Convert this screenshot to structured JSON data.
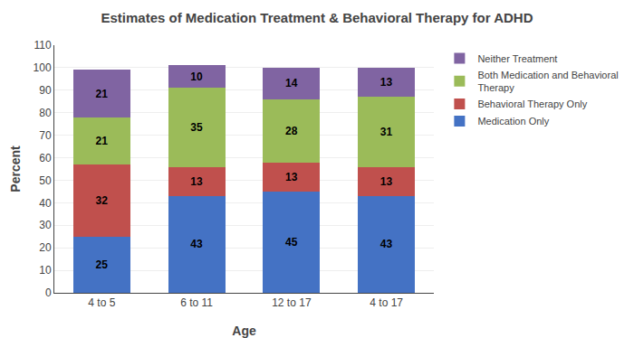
{
  "chart_data": {
    "type": "bar",
    "title": "Estimates of Medication Treatment & Behavioral Therapy for ADHD",
    "categories": [
      "4 to 5",
      "6 to 11",
      "12 to 17",
      "4 to 17"
    ],
    "xlabel": "Age",
    "ylabel": "Percent",
    "ylim": [
      0,
      110
    ],
    "yticks": [
      0,
      10,
      20,
      30,
      40,
      50,
      60,
      70,
      80,
      90,
      100,
      110
    ],
    "stacked": true,
    "data_labels": true,
    "grid": true,
    "legend": "right",
    "series": [
      {
        "name": "Medication Only",
        "color": "#4472C4",
        "values": [
          25,
          43,
          45,
          43
        ]
      },
      {
        "name": "Behavioral Therapy Only",
        "color": "#C0504D",
        "values": [
          32,
          13,
          13,
          13
        ]
      },
      {
        "name": "Both Medication and Behavioral\nTherapy",
        "color": "#9BBB59",
        "values": [
          21,
          35,
          28,
          31
        ]
      },
      {
        "name": "Neither Treatment",
        "color": "#8064A2",
        "values": [
          21,
          10,
          14,
          13
        ]
      }
    ]
  }
}
